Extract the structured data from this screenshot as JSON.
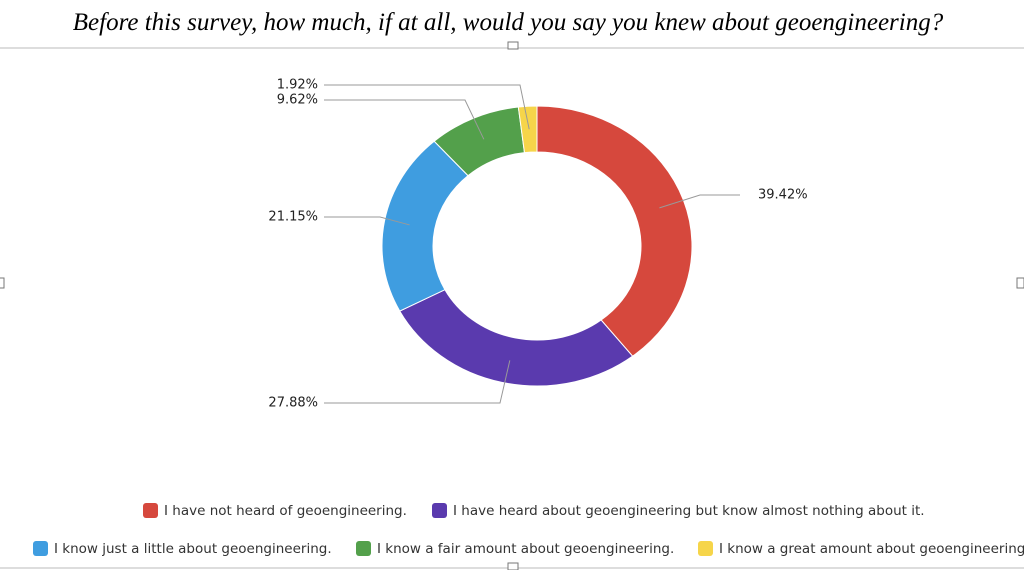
{
  "chart_data": {
    "type": "donut",
    "title": "Before this survey, how much, if at all, would you say you knew about geoengineering?",
    "categories": [
      "I have not heard of geoengineering.",
      "I have heard about geoengineering but know almost nothing about it.",
      "I know just a little about geoengineering.",
      "I know a fair amount about geoengineering.",
      "I know a great amount about geoengineering"
    ],
    "values": [
      39.42,
      27.88,
      21.15,
      9.62,
      1.92
    ],
    "value_labels": [
      "39.42%",
      "27.88%",
      "21.15%",
      "9.62%",
      "1.92%"
    ],
    "colors": [
      "#d6483d",
      "#5a3aae",
      "#3f9de0",
      "#53a04b",
      "#f6d54a"
    ]
  }
}
